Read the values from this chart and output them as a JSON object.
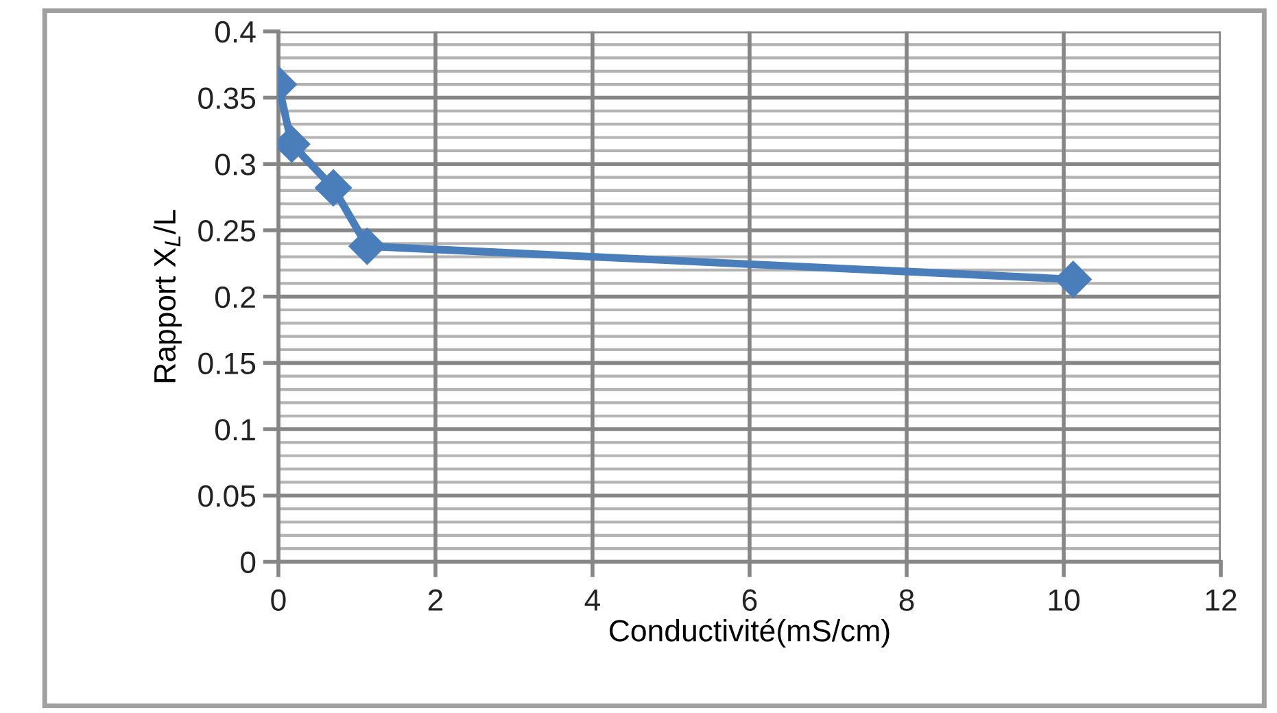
{
  "chart_data": {
    "type": "line",
    "xlabel": "Conductivité(mS/cm)",
    "ylabel": "Rapport X$_{L}$/L",
    "x": [
      0,
      0.17,
      0.7,
      1.13,
      10.12
    ],
    "series": [
      {
        "color": "#4a7ebb",
        "values": [
          0.36,
          0.315,
          0.282,
          0.238,
          0.213
        ]
      }
    ],
    "marker": "diamond",
    "line_style": "solid",
    "xlim": [
      0,
      12
    ],
    "xticks": [
      0,
      2,
      4,
      6,
      8,
      10,
      12
    ],
    "ylim": [
      0,
      0.4
    ],
    "yticks": [
      0,
      {
        "value": 0.01,
        "label": null
      },
      {
        "value": 0.02,
        "label": null
      },
      {
        "value": 0.03,
        "label": null
      },
      {
        "value": 0.04,
        "label": null
      },
      0.05,
      {
        "value": 0.06,
        "label": null
      },
      {
        "value": 0.07,
        "label": null
      },
      {
        "value": 0.08,
        "label": null
      },
      {
        "value": 0.09,
        "label": null
      },
      0.1,
      {
        "value": 0.11,
        "label": null
      },
      {
        "value": 0.12,
        "label": null
      },
      {
        "value": 0.13,
        "label": null
      },
      {
        "value": 0.14,
        "label": null
      },
      0.15,
      {
        "value": 0.16,
        "label": null
      },
      {
        "value": 0.17,
        "label": null
      },
      {
        "value": 0.18,
        "label": null
      },
      {
        "value": 0.19,
        "label": null
      },
      0.2,
      {
        "value": 0.21,
        "label": null
      },
      {
        "value": 0.22,
        "label": null
      },
      {
        "value": 0.23,
        "label": null
      },
      {
        "value": 0.24,
        "label": null
      },
      0.25,
      {
        "value": 0.26,
        "label": null
      },
      {
        "value": 0.27,
        "label": null
      },
      {
        "value": 0.28,
        "label": null
      },
      {
        "value": 0.29,
        "label": null
      },
      0.3,
      {
        "value": 0.31,
        "label": null
      },
      {
        "value": 0.32,
        "label": null
      },
      {
        "value": 0.33,
        "label": null
      },
      {
        "value": 0.34,
        "label": null
      },
      0.35,
      {
        "value": 0.36,
        "label": null
      },
      {
        "value": 0.37,
        "label": null
      },
      {
        "value": 0.38,
        "label": null
      },
      {
        "value": 0.39,
        "label": null
      },
      0.4
    ],
    "grid": true,
    "legend": false
  }
}
